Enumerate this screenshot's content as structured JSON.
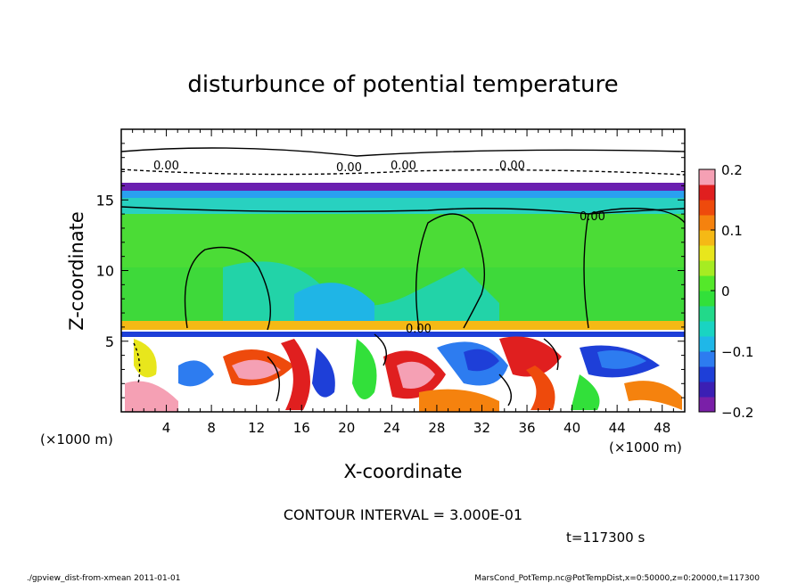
{
  "chart_data": {
    "type": "heatmap",
    "title": "disturbunce of potential temperature",
    "xlabel": "X-coordinate",
    "ylabel": "Z-coordinate",
    "x_unit": "(×1000 m)",
    "z_unit": "(×1000 m)",
    "xlim": [
      0,
      50
    ],
    "zlim": [
      0,
      20
    ],
    "x_ticks": [
      4,
      8,
      12,
      16,
      20,
      24,
      28,
      32,
      36,
      40,
      44,
      48
    ],
    "z_ticks": [
      5,
      10,
      15
    ],
    "colorbar": {
      "range": [
        -0.2,
        0.2
      ],
      "tick_labels": [
        "0.2",
        "0.1",
        "0",
        "−0.1",
        "−0.2"
      ],
      "tick_values": [
        0.2,
        0.1,
        0,
        -0.1,
        -0.2
      ],
      "colors": [
        "#7a1fa8",
        "#3b1fb4",
        "#1e3fd8",
        "#2d7cf0",
        "#1fb7e8",
        "#19d4c2",
        "#22d98a",
        "#32e03a",
        "#54e82a",
        "#a6ec22",
        "#e8e61c",
        "#f5b915",
        "#f5820e",
        "#ee4a0c",
        "#e01f1f",
        "#f5a0b4"
      ]
    },
    "contour_labels": [
      "0.00",
      "0.00",
      "0.00",
      "0.00",
      "0.00",
      "0.00"
    ],
    "contour_interval_text": "CONTOUR INTERVAL = 3.000E-01",
    "time_text": "t=117300 s",
    "footer_left": "./gpview_dist-from-xmean  2011-01-01",
    "footer_right": "MarsCond_PotTemp.nc@PotTempDist,x=0:50000,z=0:20000,t=117300"
  }
}
